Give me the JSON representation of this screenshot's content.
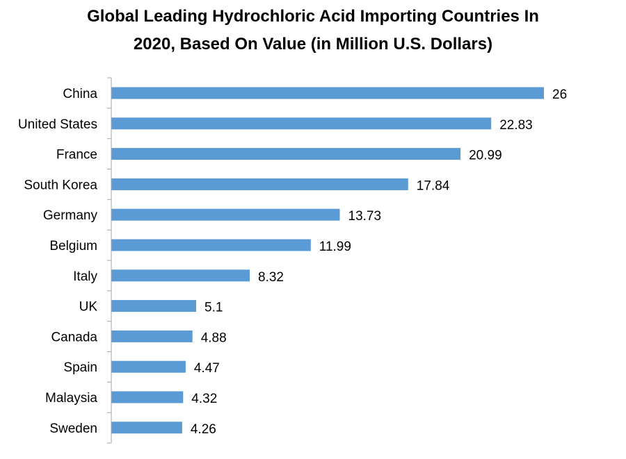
{
  "chart_data": {
    "type": "bar",
    "orientation": "horizontal",
    "title": "Global Leading Hydrochloric Acid Importing Countries In 2020, Based On Value (in Million U.S. Dollars)",
    "title_lines": [
      "Global Leading Hydrochloric Acid Importing Countries In",
      "2020, Based On Value (in Million U.S. Dollars)"
    ],
    "categories": [
      "China",
      "United States",
      "France",
      "South Korea",
      "Germany",
      "Belgium",
      "Italy",
      "UK",
      "Canada",
      "Spain",
      "Malaysia",
      "Sweden"
    ],
    "values": [
      26,
      22.83,
      20.99,
      17.84,
      13.73,
      11.99,
      8.32,
      5.1,
      4.88,
      4.47,
      4.32,
      4.26
    ],
    "value_labels": [
      "26",
      "22.83",
      "20.99",
      "17.84",
      "13.73",
      "11.99",
      "8.32",
      "5.1",
      "4.88",
      "4.47",
      "4.32",
      "4.26"
    ],
    "xlabel": "",
    "ylabel": "",
    "xlim": [
      0,
      26
    ],
    "grid": false,
    "legend": "none",
    "bar_color": "#5b9bd5",
    "axis_color": "#a6a6a6"
  }
}
